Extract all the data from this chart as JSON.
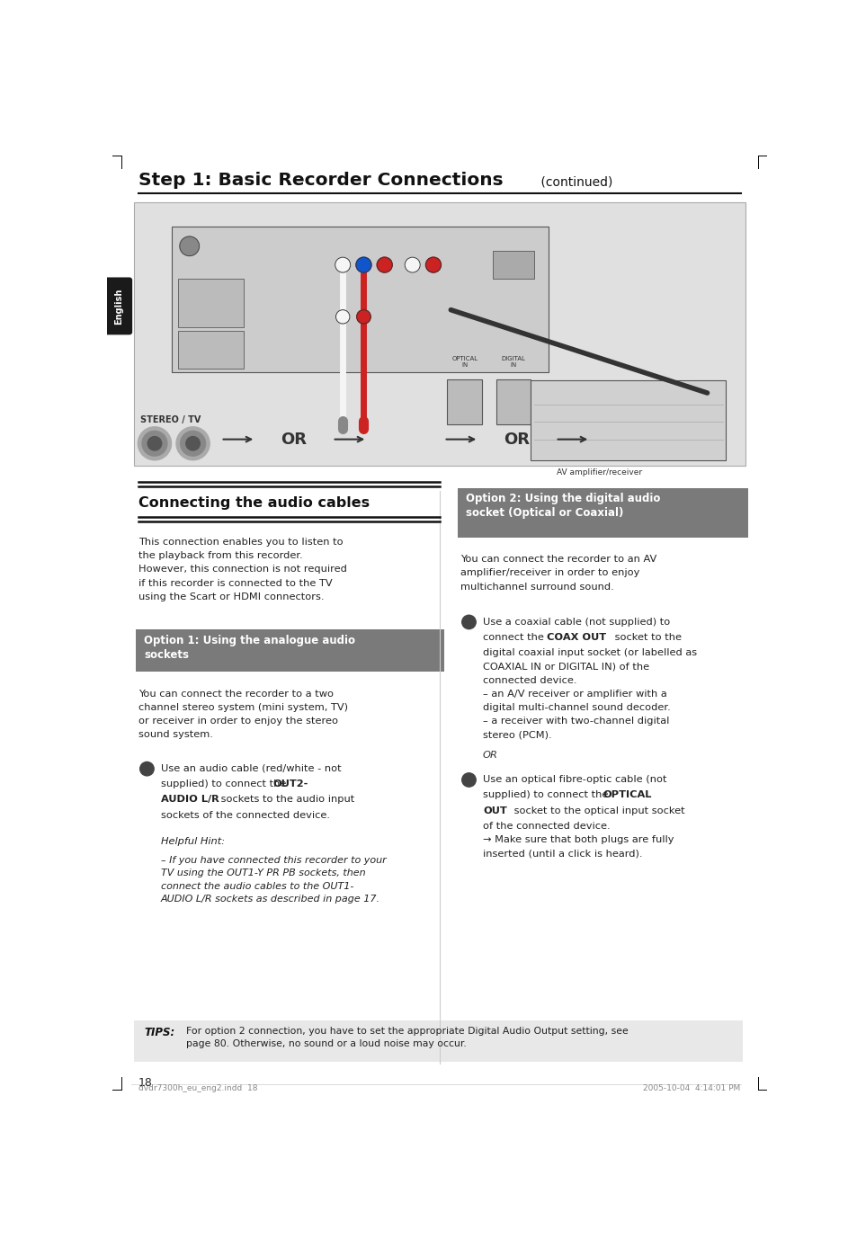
{
  "bg_color": "#ffffff",
  "page_width": 9.54,
  "page_height": 13.77,
  "title_bold": "Step 1: Basic Recorder Connections",
  "title_normal": " (continued)",
  "heading_left": "Connecting the audio cables",
  "heading_opt1": "Option 1: Using the analogue audio\nsockets",
  "heading_opt2": "Option 2: Using the digital audio\nsocket (Optical or Coaxial)",
  "text_intro": "This connection enables you to listen to\nthe playback from this recorder.\nHowever, this connection is not required\nif this recorder is connected to the TV\nusing the Scart or HDMI connectors.",
  "text_opt1_intro": "You can connect the recorder to a two\nchannel stereo system (mini system, TV)\nor receiver in order to enjoy the stereo\nsound system.",
  "text_opt2_intro": "You can connect the recorder to an AV\namplifier/receiver in order to enjoy\nmultichannel surround sound.",
  "text_or": "OR",
  "tips_label": "TIPS:",
  "tips_text": "For option 2 connection, you have to set the appropriate Digital Audio Output setting, see\npage 80. Otherwise, no sound or a loud noise may occur.",
  "page_number": "18",
  "footer_left": "dvdr7300h_eu_eng2.indd  18",
  "footer_right": "2005-10-04  4:14:01 PM",
  "sidebar_text": "English",
  "sidebar_bg": "#1a1a1a",
  "sidebar_fg": "#ffffff",
  "opt1_bg": "#7a7a7a",
  "opt2_bg": "#7a7a7a",
  "tips_bg": "#e8e8e8",
  "diagram_bg": "#e0e0e0",
  "img_border": "#999999"
}
